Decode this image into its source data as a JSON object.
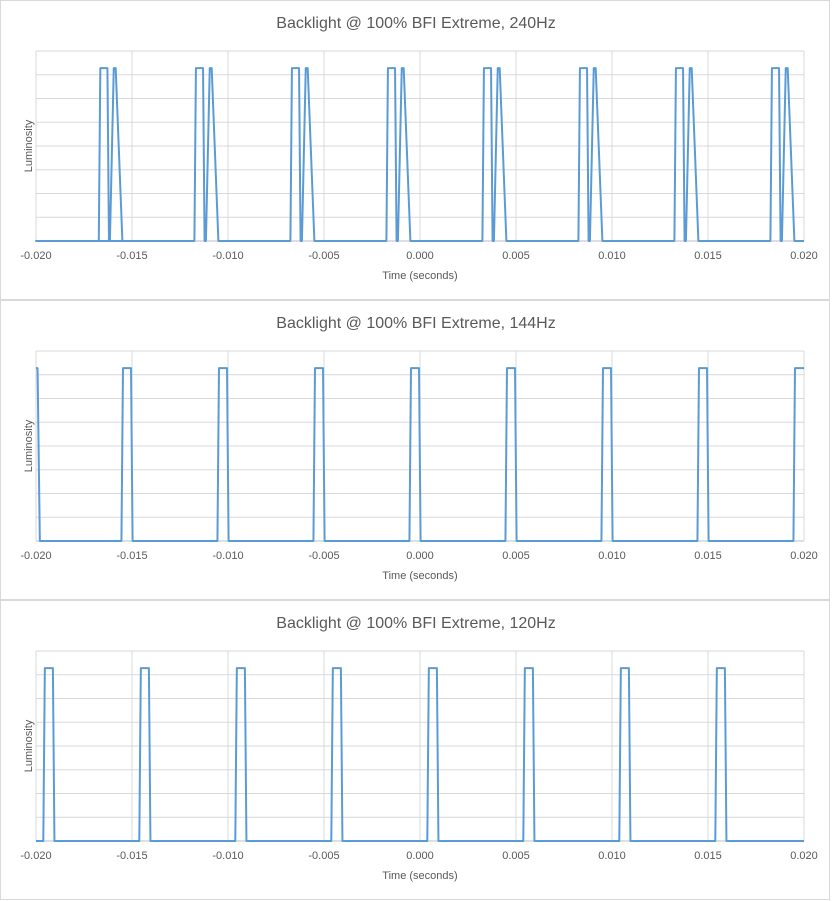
{
  "chart_data": [
    {
      "type": "line",
      "title": "Backlight @ 100% BFI Extreme, 240Hz",
      "xlabel": "Time (seconds)",
      "ylabel": "Luminosity",
      "xlim": [
        -0.02,
        0.02
      ],
      "ylim": [
        0,
        1
      ],
      "x_ticks": [
        "-0.020",
        "-0.015",
        "-0.010",
        "-0.005",
        "0.000",
        "0.005",
        "0.010",
        "0.015",
        "0.020"
      ],
      "grid": true,
      "line_color": "#5b9bd5",
      "series": [
        {
          "x": [
            -0.02,
            -0.01673,
            -0.01665,
            -0.01628,
            -0.0162,
            -0.01615,
            -0.01595,
            -0.01585,
            -0.0155,
            -0.0154,
            -0.02,
            -0.01175,
            -0.01167,
            -0.0113,
            -0.01122,
            -0.01115,
            -0.01095,
            -0.01085,
            -0.0105,
            -0.0104,
            -0.00675,
            -0.00667,
            -0.0063,
            -0.00622,
            -0.00615,
            -0.00595,
            -0.00585,
            -0.0055,
            -0.0054,
            -0.00175,
            -0.00167,
            -0.0013,
            -0.00122,
            -0.00115,
            -0.00095,
            -0.00085,
            -0.0005,
            -0.0004,
            0.00325,
            0.00333,
            0.0037,
            0.00378,
            0.00385,
            0.00405,
            0.00415,
            0.0045,
            0.0046,
            0.00825,
            0.00833,
            0.0087,
            0.00878,
            0.00885,
            0.00905,
            0.00915,
            0.0095,
            0.0096,
            0.01325,
            0.01333,
            0.0137,
            0.01378,
            0.01385,
            0.01405,
            0.01415,
            0.0145,
            0.0146,
            0.01825,
            0.01833,
            0.0187,
            0.01878,
            0.01885,
            0.01905,
            0.01915,
            0.0195,
            0.0196,
            0.02
          ],
          "y": [
            0,
            0,
            0.91,
            0.91,
            0,
            0,
            0.91,
            0.91,
            0,
            0,
            0,
            0,
            0.91,
            0.91,
            0,
            0,
            0.91,
            0.91,
            0,
            0,
            0,
            0.91,
            0.91,
            0,
            0,
            0.91,
            0.91,
            0,
            0,
            0,
            0.91,
            0.91,
            0,
            0,
            0.91,
            0.91,
            0,
            0,
            0,
            0.91,
            0.91,
            0,
            0,
            0.91,
            0.91,
            0,
            0,
            0,
            0.91,
            0.91,
            0,
            0,
            0.91,
            0.91,
            0,
            0,
            0,
            0.91,
            0.91,
            0,
            0,
            0.91,
            0.91,
            0,
            0,
            0,
            0.91,
            0.91,
            0,
            0,
            0.91,
            0.91,
            0,
            0,
            0
          ]
        }
      ]
    },
    {
      "type": "line",
      "title": "Backlight @ 100% BFI Extreme, 144Hz",
      "xlabel": "Time (seconds)",
      "ylabel": "Luminosity",
      "xlim": [
        -0.02,
        0.02
      ],
      "ylim": [
        0,
        1
      ],
      "x_ticks": [
        "-0.020",
        "-0.015",
        "-0.010",
        "-0.005",
        "0.000",
        "0.005",
        "0.010",
        "0.015",
        "0.020"
      ],
      "grid": true,
      "line_color": "#5b9bd5",
      "series": [
        {
          "x": [
            -0.02,
            -0.01992,
            -0.0198,
            -0.01555,
            -0.01547,
            -0.01505,
            -0.01497,
            -0.01055,
            -0.01047,
            -0.01005,
            -0.00997,
            -0.00555,
            -0.00547,
            -0.00505,
            -0.00497,
            -0.00055,
            -0.00047,
            -5e-05,
            3e-05,
            0.00445,
            0.00453,
            0.00495,
            0.00503,
            0.00945,
            0.00953,
            0.00995,
            0.01003,
            0.01445,
            0.01453,
            0.01495,
            0.01503,
            0.01945,
            0.01953,
            0.02
          ],
          "y": [
            0.91,
            0.91,
            0,
            0,
            0.91,
            0.91,
            0,
            0,
            0.91,
            0.91,
            0,
            0,
            0.91,
            0.91,
            0,
            0,
            0.91,
            0.91,
            0,
            0,
            0.91,
            0.91,
            0,
            0,
            0.91,
            0.91,
            0,
            0,
            0.91,
            0.91,
            0,
            0,
            0.91,
            0.91
          ]
        }
      ]
    },
    {
      "type": "line",
      "title": "Backlight @ 100% BFI Extreme, 120Hz",
      "xlabel": "Time (seconds)",
      "ylabel": "Luminosity",
      "xlim": [
        -0.02,
        0.02
      ],
      "ylim": [
        0,
        1
      ],
      "x_ticks": [
        "-0.020",
        "-0.015",
        "-0.010",
        "-0.005",
        "0.000",
        "0.005",
        "0.010",
        "0.015",
        "0.020"
      ],
      "grid": true,
      "line_color": "#5b9bd5",
      "series": [
        {
          "x": [
            -0.02,
            -0.01962,
            -0.01954,
            -0.01912,
            -0.01904,
            -0.01462,
            -0.01454,
            -0.01412,
            -0.01404,
            -0.00962,
            -0.00954,
            -0.00912,
            -0.00904,
            -0.00462,
            -0.00454,
            -0.00412,
            -0.00404,
            0.00038,
            0.00046,
            0.00088,
            0.00096,
            0.00538,
            0.00546,
            0.00588,
            0.00596,
            0.01038,
            0.01046,
            0.01088,
            0.01096,
            0.01538,
            0.01546,
            0.01588,
            0.01596,
            0.02
          ],
          "y": [
            0,
            0,
            0.91,
            0.91,
            0,
            0,
            0.91,
            0.91,
            0,
            0,
            0.91,
            0.91,
            0,
            0,
            0.91,
            0.91,
            0,
            0,
            0.91,
            0.91,
            0,
            0,
            0.91,
            0.91,
            0,
            0,
            0.91,
            0.91,
            0,
            0,
            0.91,
            0.91,
            0,
            0
          ]
        }
      ]
    }
  ]
}
